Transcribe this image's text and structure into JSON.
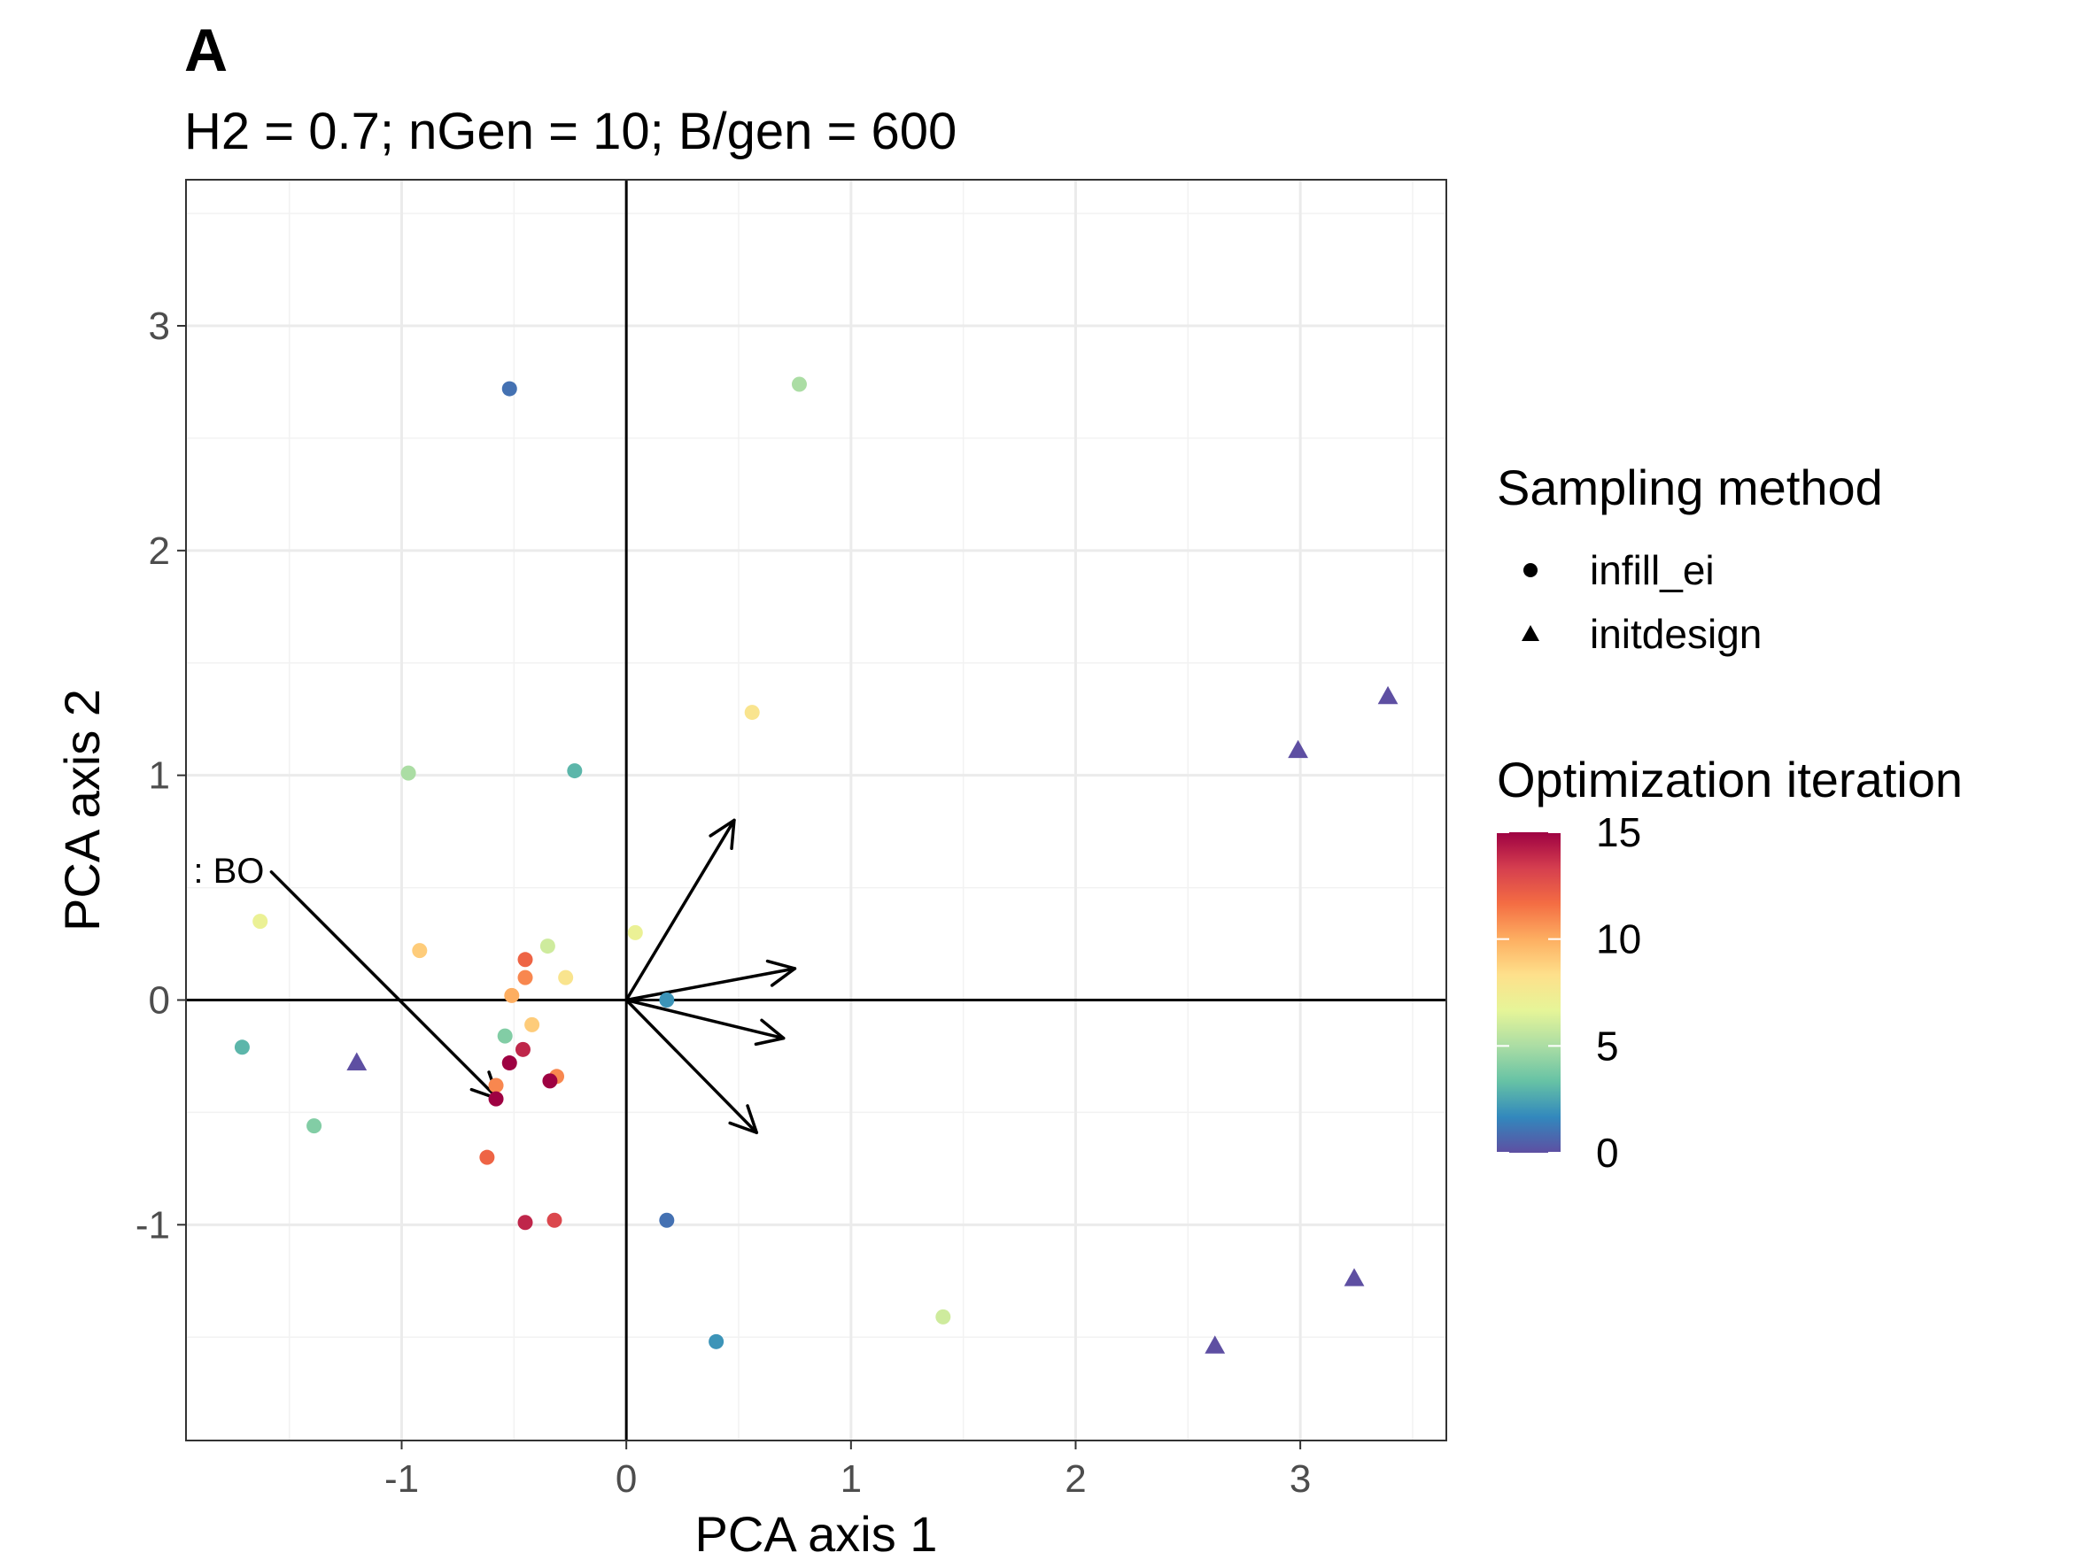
{
  "panel_tag": "A",
  "chart_data": {
    "type": "scatter",
    "title": "H2 = 0.7; nGen = 10; B/gen = 600",
    "xlabel": "PCA axis 1",
    "ylabel": "PCA axis 2",
    "xlim": [
      -1.96,
      3.65
    ],
    "ylim": [
      -1.96,
      3.65
    ],
    "xticks": [
      -1,
      0,
      1,
      2,
      3
    ],
    "yticks": [
      -1,
      0,
      1,
      2,
      3
    ],
    "xtick_labels": [
      "-1",
      "0",
      "1",
      "2",
      "3"
    ],
    "ytick_labels": [
      "-1",
      "0",
      "1",
      "2",
      "3"
    ],
    "grid": true,
    "reference_lines": {
      "x": 0,
      "y": 0
    },
    "legend_position": "right",
    "shape_legend": {
      "title": "Sampling method",
      "items": [
        {
          "label": "infill_ei",
          "shape": "circle"
        },
        {
          "label": "initdesign",
          "shape": "triangle"
        }
      ]
    },
    "color_legend": {
      "title": "Optimization iteration",
      "min": 0,
      "max": 15,
      "ticks": [
        0,
        5,
        10,
        15
      ],
      "tick_labels": [
        "0",
        "5",
        "10",
        "15"
      ],
      "palette": [
        "#5e4fa2",
        "#3288bd",
        "#66c2a5",
        "#abdda4",
        "#e6f598",
        "#fee08b",
        "#fdae61",
        "#f46d43",
        "#d53e4f",
        "#9e0142"
      ]
    },
    "points": [
      {
        "x": 3.39,
        "y": 1.35,
        "method": "initdesign",
        "iter": 0
      },
      {
        "x": 2.99,
        "y": 1.11,
        "method": "initdesign",
        "iter": 0
      },
      {
        "x": 3.24,
        "y": -1.24,
        "method": "initdesign",
        "iter": 0
      },
      {
        "x": 2.62,
        "y": -1.54,
        "method": "initdesign",
        "iter": 0
      },
      {
        "x": -1.2,
        "y": -0.28,
        "method": "initdesign",
        "iter": 0
      },
      {
        "x": -0.52,
        "y": 2.72,
        "method": "infill_ei",
        "iter": 1
      },
      {
        "x": 0.18,
        "y": -0.98,
        "method": "infill_ei",
        "iter": 1
      },
      {
        "x": 0.4,
        "y": -1.52,
        "method": "infill_ei",
        "iter": 2
      },
      {
        "x": 0.18,
        "y": 0.0,
        "method": "infill_ei",
        "iter": 2
      },
      {
        "x": -0.23,
        "y": 1.02,
        "method": "infill_ei",
        "iter": 3
      },
      {
        "x": -1.71,
        "y": -0.21,
        "method": "infill_ei",
        "iter": 3
      },
      {
        "x": -1.39,
        "y": -0.56,
        "method": "infill_ei",
        "iter": 4
      },
      {
        "x": -0.54,
        "y": -0.16,
        "method": "infill_ei",
        "iter": 4
      },
      {
        "x": 0.77,
        "y": 2.74,
        "method": "infill_ei",
        "iter": 5
      },
      {
        "x": -0.97,
        "y": 1.01,
        "method": "infill_ei",
        "iter": 5
      },
      {
        "x": 1.41,
        "y": -1.41,
        "method": "infill_ei",
        "iter": 6
      },
      {
        "x": -0.35,
        "y": 0.24,
        "method": "infill_ei",
        "iter": 6
      },
      {
        "x": -1.63,
        "y": 0.35,
        "method": "infill_ei",
        "iter": 7
      },
      {
        "x": 0.04,
        "y": 0.3,
        "method": "infill_ei",
        "iter": 7
      },
      {
        "x": -0.27,
        "y": 0.1,
        "method": "infill_ei",
        "iter": 8
      },
      {
        "x": 0.56,
        "y": 1.28,
        "method": "infill_ei",
        "iter": 8
      },
      {
        "x": -0.42,
        "y": -0.11,
        "method": "infill_ei",
        "iter": 9
      },
      {
        "x": -0.92,
        "y": 0.22,
        "method": "infill_ei",
        "iter": 9
      },
      {
        "x": -0.51,
        "y": 0.02,
        "method": "infill_ei",
        "iter": 10
      },
      {
        "x": -0.45,
        "y": 0.1,
        "method": "infill_ei",
        "iter": 11
      },
      {
        "x": -0.31,
        "y": -0.34,
        "method": "infill_ei",
        "iter": 11
      },
      {
        "x": -0.58,
        "y": -0.38,
        "method": "infill_ei",
        "iter": 11
      },
      {
        "x": -0.45,
        "y": 0.18,
        "method": "infill_ei",
        "iter": 12
      },
      {
        "x": -0.62,
        "y": -0.7,
        "method": "infill_ei",
        "iter": 12
      },
      {
        "x": -0.32,
        "y": -0.98,
        "method": "infill_ei",
        "iter": 13
      },
      {
        "x": -0.45,
        "y": -0.99,
        "method": "infill_ei",
        "iter": 14
      },
      {
        "x": -0.46,
        "y": -0.22,
        "method": "infill_ei",
        "iter": 14
      },
      {
        "x": -0.34,
        "y": -0.36,
        "method": "infill_ei",
        "iter": 15
      },
      {
        "x": -0.52,
        "y": -0.28,
        "method": "infill_ei",
        "iter": 15
      },
      {
        "x": -0.58,
        "y": -0.44,
        "method": "infill_ei",
        "iter": 15
      }
    ],
    "arrows": [
      {
        "x_end": 0.48,
        "y_end": 0.8,
        "label": ""
      },
      {
        "x_end": 0.75,
        "y_end": 0.14,
        "label": ""
      },
      {
        "x_end": 0.7,
        "y_end": -0.17,
        "label": ""
      },
      {
        "x_end": 0.58,
        "y_end": -0.59,
        "label": ""
      },
      {
        "x_start": -1.58,
        "y_start": 0.57,
        "x_end": -0.57,
        "y_end": -0.44,
        "label": ": BO"
      }
    ]
  }
}
